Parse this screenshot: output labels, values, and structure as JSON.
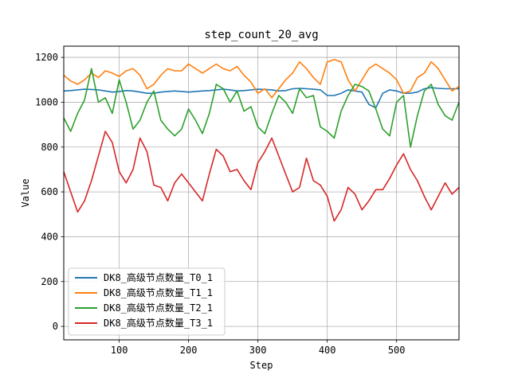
{
  "chart_data": {
    "type": "line",
    "title": "step_count_20_avg",
    "xlabel": "Step",
    "ylabel": "Value",
    "xlim": [
      20,
      590
    ],
    "ylim": [
      -60,
      1250
    ],
    "xticks": [
      100,
      200,
      300,
      400,
      500
    ],
    "yticks": [
      0,
      200,
      400,
      600,
      800,
      1000,
      1200
    ],
    "grid": true,
    "legend_position": "lower-left",
    "x": [
      20,
      30,
      40,
      50,
      60,
      70,
      80,
      90,
      100,
      110,
      120,
      130,
      140,
      150,
      160,
      170,
      180,
      190,
      200,
      210,
      220,
      230,
      240,
      250,
      260,
      270,
      280,
      290,
      300,
      310,
      320,
      330,
      340,
      350,
      360,
      370,
      380,
      390,
      400,
      410,
      420,
      430,
      440,
      450,
      460,
      470,
      480,
      490,
      500,
      510,
      520,
      530,
      540,
      550,
      560,
      570,
      580,
      590
    ],
    "series": [
      {
        "name": "DK8_高级节点数量_T0_1",
        "color": "#1f77b4",
        "values": [
          1050,
          1052,
          1055,
          1058,
          1057,
          1055,
          1050,
          1045,
          1048,
          1052,
          1050,
          1045,
          1040,
          1040,
          1045,
          1048,
          1050,
          1048,
          1045,
          1048,
          1050,
          1052,
          1055,
          1058,
          1055,
          1050,
          1052,
          1055,
          1058,
          1057,
          1055,
          1050,
          1052,
          1060,
          1062,
          1060,
          1058,
          1055,
          1030,
          1030,
          1040,
          1055,
          1050,
          1045,
          990,
          975,
          1040,
          1055,
          1050,
          1040,
          1040,
          1045,
          1060,
          1065,
          1062,
          1060,
          1060,
          1060
        ]
      },
      {
        "name": "DK8_高级节点数量_T1_1",
        "color": "#ff7f0e",
        "values": [
          1120,
          1095,
          1080,
          1100,
          1130,
          1110,
          1140,
          1130,
          1115,
          1140,
          1150,
          1120,
          1060,
          1080,
          1120,
          1150,
          1140,
          1140,
          1170,
          1150,
          1130,
          1150,
          1170,
          1150,
          1140,
          1160,
          1120,
          1090,
          1040,
          1060,
          1020,
          1060,
          1100,
          1130,
          1180,
          1150,
          1110,
          1080,
          1180,
          1190,
          1180,
          1100,
          1050,
          1100,
          1150,
          1170,
          1150,
          1130,
          1100,
          1040,
          1050,
          1110,
          1130,
          1180,
          1150,
          1100,
          1050,
          1070
        ]
      },
      {
        "name": "DK8_高级节点数量_T2_1",
        "color": "#2ca02c",
        "values": [
          930,
          870,
          950,
          1010,
          1150,
          1000,
          1020,
          950,
          1100,
          1000,
          880,
          920,
          1000,
          1050,
          920,
          880,
          850,
          880,
          970,
          920,
          860,
          950,
          1080,
          1060,
          1000,
          1050,
          960,
          980,
          890,
          860,
          950,
          1030,
          1000,
          950,
          1060,
          1020,
          1030,
          890,
          870,
          840,
          960,
          1030,
          1080,
          1070,
          1050,
          970,
          880,
          850,
          1000,
          1030,
          800,
          940,
          1050,
          1080,
          990,
          940,
          920,
          1000
        ]
      },
      {
        "name": "DK8_高级节点数量_T3_1",
        "color": "#d62728",
        "values": [
          690,
          600,
          510,
          560,
          650,
          760,
          870,
          820,
          690,
          640,
          700,
          840,
          780,
          630,
          620,
          560,
          640,
          680,
          640,
          600,
          560,
          680,
          790,
          760,
          690,
          700,
          650,
          610,
          730,
          780,
          840,
          760,
          680,
          600,
          620,
          750,
          650,
          630,
          580,
          470,
          520,
          620,
          590,
          520,
          560,
          610,
          610,
          660,
          720,
          770,
          700,
          650,
          580,
          520,
          580,
          640,
          590,
          620
        ]
      }
    ]
  }
}
